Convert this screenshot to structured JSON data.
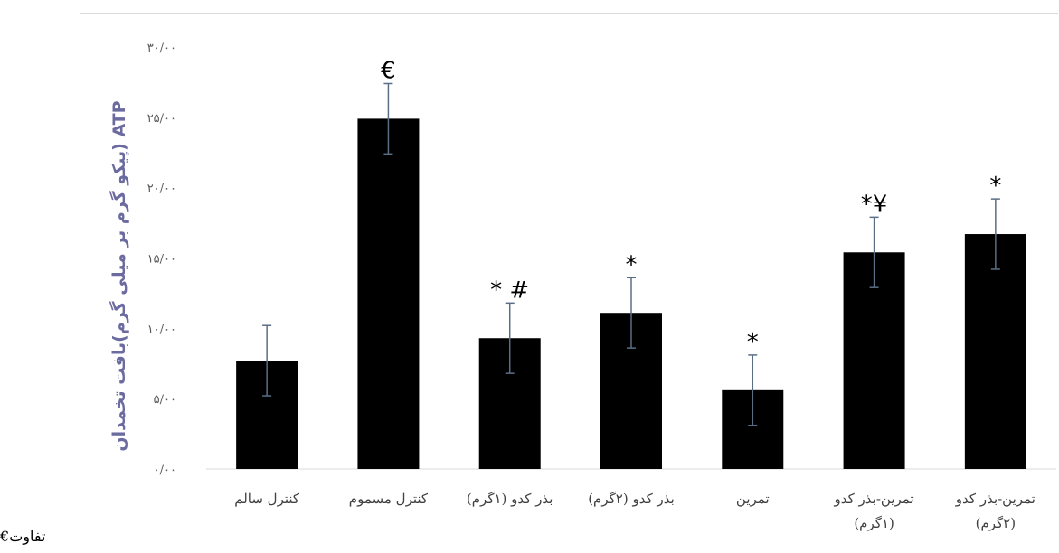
{
  "chart_data": {
    "type": "bar",
    "title": "",
    "ylabel": "ATP (پیکو گرم بر میلی گرم)بافت تخمدان",
    "xlabel": "",
    "ylim": [
      0,
      30
    ],
    "yticks": [
      "۰/۰۰",
      "۵/۰۰",
      "۱۰/۰۰",
      "۱۵/۰۰",
      "۲۰/۰۰",
      "۲۵/۰۰",
      "۳۰/۰۰"
    ],
    "ytick_values": [
      0,
      5,
      10,
      15,
      20,
      25,
      30
    ],
    "grid": false,
    "bar_color": "#000000",
    "error_bar_color": "#5a6e86",
    "categories": [
      [
        "کنترل سالم"
      ],
      [
        "کنترل مسموم"
      ],
      [
        "بذر کدو (۱گرم)"
      ],
      [
        "بذر کدو (۲گرم)"
      ],
      [
        "تمرین"
      ],
      [
        "تمرین-بذر کدو",
        "(۱گرم)"
      ],
      [
        "تمرین-بذر کدو",
        "(۲گرم)"
      ]
    ],
    "values": [
      7.7,
      24.9,
      9.3,
      11.1,
      5.6,
      15.4,
      16.7
    ],
    "errors": [
      2.5,
      2.5,
      2.5,
      2.5,
      2.5,
      2.5,
      2.5
    ],
    "markers": [
      "",
      "€",
      "* #",
      "*",
      "*",
      "*¥",
      "*"
    ]
  },
  "corner_note": "€تفاوت"
}
